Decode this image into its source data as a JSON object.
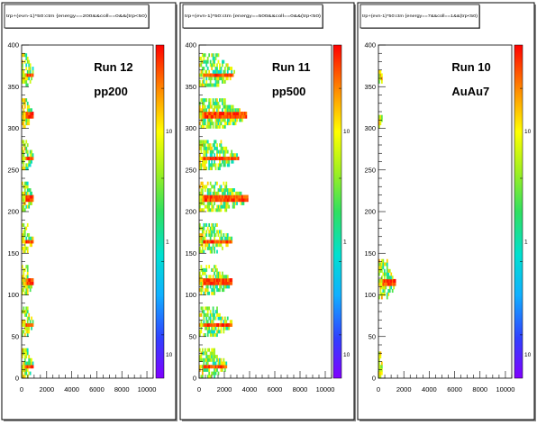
{
  "chart_data": [
    {
      "type": "heatmap",
      "title": "trp+(evn-1)*50:ctm {energy==200&&coll==0&&(trp<50)",
      "run_label": "Run 12",
      "system_label": "pp200",
      "xlim": [
        0,
        10500
      ],
      "ylim": [
        0,
        400
      ],
      "x_ticks": [
        0,
        2000,
        4000,
        6000,
        8000,
        10000
      ],
      "y_ticks": [
        0,
        50,
        100,
        150,
        200,
        250,
        300,
        350,
        400
      ],
      "colorbar_log": true,
      "colorbar_labels": [
        "10",
        "1",
        "10"
      ],
      "bands": [
        {
          "y_min": 0,
          "y_max": 35,
          "x_max": 900,
          "peak_y": 12
        },
        {
          "y_min": 50,
          "y_max": 85,
          "x_max": 900,
          "peak_y": 62
        },
        {
          "y_min": 100,
          "y_max": 135,
          "x_max": 900,
          "peak_y": 113
        },
        {
          "y_min": 150,
          "y_max": 185,
          "x_max": 900,
          "peak_y": 162
        },
        {
          "y_min": 200,
          "y_max": 235,
          "x_max": 900,
          "peak_y": 213
        },
        {
          "y_min": 250,
          "y_max": 285,
          "x_max": 900,
          "peak_y": 262
        },
        {
          "y_min": 300,
          "y_max": 335,
          "x_max": 900,
          "peak_y": 313
        },
        {
          "y_min": 350,
          "y_max": 390,
          "x_max": 900,
          "peak_y": 362
        }
      ]
    },
    {
      "type": "heatmap",
      "title": "trp+(evn-1)*50:ctm {energy==500&&coll==0&&(trp<50)",
      "run_label": "Run 11",
      "system_label": "pp500",
      "xlim": [
        0,
        10500
      ],
      "ylim": [
        0,
        400
      ],
      "x_ticks": [
        0,
        2000,
        4000,
        6000,
        8000,
        10000
      ],
      "y_ticks": [
        0,
        50,
        100,
        150,
        200,
        250,
        300,
        350,
        400
      ],
      "colorbar_log": true,
      "colorbar_labels": [
        "10",
        "1",
        "10"
      ],
      "bands": [
        {
          "y_min": 0,
          "y_max": 35,
          "x_max": 2200,
          "peak_y": 12
        },
        {
          "y_min": 50,
          "y_max": 85,
          "x_max": 2600,
          "peak_y": 62
        },
        {
          "y_min": 100,
          "y_max": 135,
          "x_max": 2600,
          "peak_y": 113
        },
        {
          "y_min": 150,
          "y_max": 185,
          "x_max": 2600,
          "peak_y": 162
        },
        {
          "y_min": 200,
          "y_max": 235,
          "x_max": 3900,
          "peak_y": 213
        },
        {
          "y_min": 250,
          "y_max": 285,
          "x_max": 3100,
          "peak_y": 262
        },
        {
          "y_min": 300,
          "y_max": 335,
          "x_max": 3800,
          "peak_y": 313
        },
        {
          "y_min": 350,
          "y_max": 390,
          "x_max": 2800,
          "peak_y": 362
        }
      ]
    },
    {
      "type": "heatmap",
      "title": "trp+(evn-1)*50:ctm {energy==7&&coll==1&&(trp<50)",
      "run_label": "Run 10",
      "system_label": "AuAu7",
      "xlim": [
        0,
        10500
      ],
      "ylim": [
        0,
        400
      ],
      "x_ticks": [
        0,
        2000,
        4000,
        6000,
        8000,
        10000
      ],
      "y_ticks": [
        0,
        50,
        100,
        150,
        200,
        250,
        300,
        350,
        400
      ],
      "colorbar_log": true,
      "colorbar_labels": [
        "10",
        "1",
        "10"
      ],
      "bands": [
        {
          "y_min": 0,
          "y_max": 30,
          "x_max": 300,
          "peak_y": 10
        },
        {
          "y_min": 95,
          "y_max": 140,
          "x_max": 1300,
          "peak_y": 112
        },
        {
          "y_min": 300,
          "y_max": 320,
          "x_max": 300,
          "peak_y": 310
        },
        {
          "y_min": 350,
          "y_max": 370,
          "x_max": 300,
          "peak_y": 360
        }
      ]
    }
  ]
}
